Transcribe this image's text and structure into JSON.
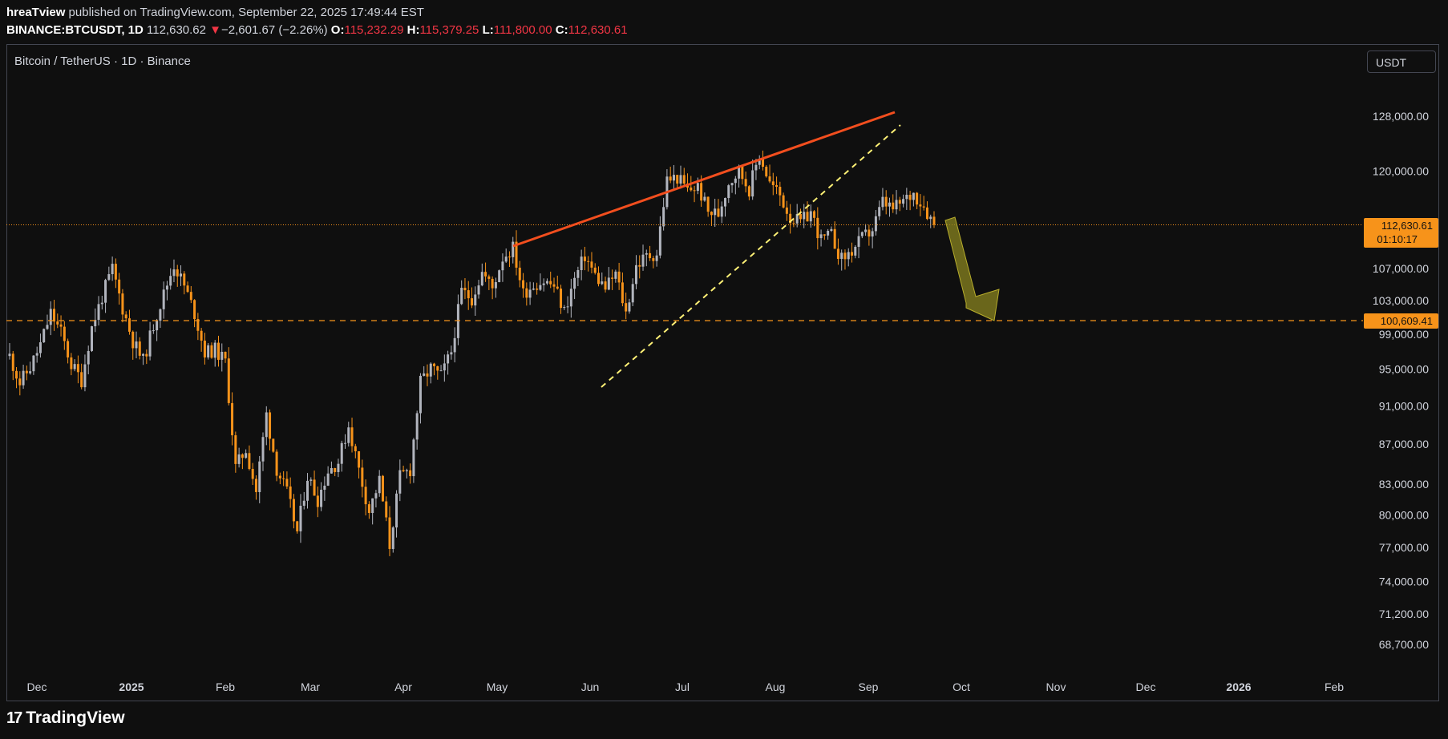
{
  "header": {
    "author": "hreaTview",
    "published_text": "published on TradingView.com, September 22, 2025 17:49:44 EST",
    "symbol": "BINANCE:BTCUSDT, 1D",
    "last": "112,630.62",
    "change": "−2,601.67 (−2.26%)",
    "open_label": "O:",
    "open": "115,232.29",
    "high_label": "H:",
    "high": "115,379.25",
    "low_label": "L:",
    "low": "111,800.00",
    "close_label": "C:",
    "close": "112,630.61"
  },
  "chart_title": "Bitcoin / TetherUS · 1D · Binance",
  "currency_button": "USDT",
  "footer": {
    "brand": "TradingView"
  },
  "colors": {
    "bull": "#b2b5be",
    "bear": "#f7931a",
    "resistance": "#f24e1e",
    "support": "#fff176",
    "arrow": "#8a8420"
  },
  "chart_data": {
    "type": "candlestick",
    "scale": "log",
    "x_labels": [
      "Dec",
      "2025",
      "Feb",
      "Mar",
      "Apr",
      "May",
      "Jun",
      "Jul",
      "Aug",
      "Sep",
      "Oct",
      "Nov",
      "Dec",
      "2026",
      "Feb"
    ],
    "y_ticks": [
      "128,000.00",
      "120,000.00",
      "107,000.00",
      "103,000.00",
      "99,000.00",
      "95,000.00",
      "91,000.00",
      "87,000.00",
      "83,000.00",
      "80,000.00",
      "77,000.00",
      "74,000.00",
      "71,200.00",
      "68,700.00"
    ],
    "current_price": "112,630.61",
    "countdown": "01:10:17",
    "level_price": "100,609.41",
    "ohlc_path": [
      96500,
      93500,
      95200,
      97800,
      101500,
      99200,
      95500,
      93800,
      99800,
      103500,
      106900,
      102100,
      98200,
      95900,
      100100,
      103800,
      107500,
      104800,
      101500,
      96900,
      97200,
      95800,
      84600,
      86500,
      82300,
      90100,
      84500,
      82100,
      78400,
      83800,
      81500,
      84300,
      85200,
      88900,
      84400,
      80400,
      83300,
      77200,
      83700,
      84400,
      93500,
      95100,
      94200,
      97000,
      104100,
      103300,
      106500,
      104500,
      108400,
      109600,
      103900,
      105000,
      105400,
      104800,
      101700,
      105600,
      108600,
      106100,
      104500,
      106300,
      101500,
      107300,
      108500,
      108900,
      118700,
      119100,
      117300,
      117800,
      114300,
      114100,
      118400,
      120100,
      117500,
      122400,
      118300,
      116600,
      113600,
      112900,
      114300,
      110600,
      111200,
      108100,
      109200,
      110800,
      112000,
      115700,
      114700,
      115800,
      116900,
      115200,
      112630
    ]
  }
}
